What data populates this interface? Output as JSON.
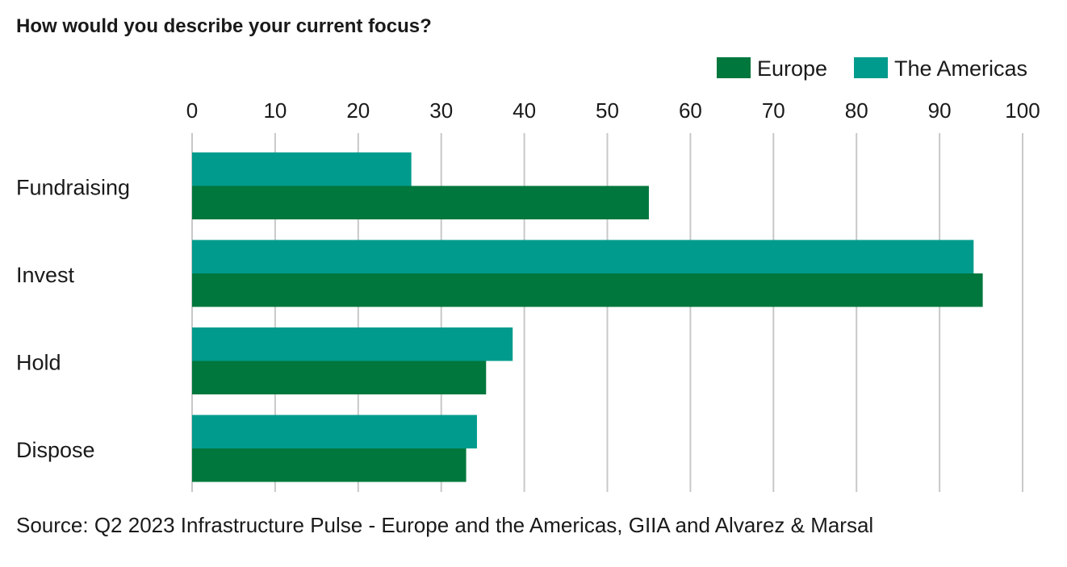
{
  "chart_data": {
    "type": "bar",
    "orientation": "horizontal",
    "title": "How would you describe your current focus?",
    "source": "Source: Q2 2023 Infrastructure Pulse - Europe and the Americas,  GIIA and Alvarez & Marsal",
    "categories": [
      "Fundraising",
      "Invest",
      "Hold",
      "Dispose"
    ],
    "series": [
      {
        "name": "The Americas",
        "color": "#009B8D",
        "values": [
          26.4,
          94.1,
          38.6,
          34.3
        ]
      },
      {
        "name": "Europe",
        "color": "#00773D",
        "values": [
          55.0,
          95.2,
          35.4,
          33.0
        ]
      }
    ],
    "legend": {
      "placement": "top-right",
      "order": [
        "Europe",
        "The Americas"
      ]
    },
    "xlim": [
      0,
      100
    ],
    "xticks": [
      0,
      10,
      20,
      30,
      40,
      50,
      60,
      70,
      80,
      90,
      100
    ],
    "xaxis_position": "top",
    "grid": true,
    "grid_color": "#C8C8C8"
  }
}
